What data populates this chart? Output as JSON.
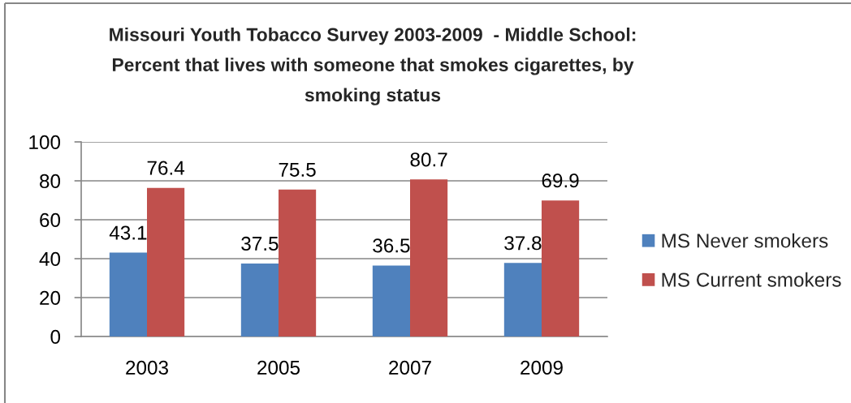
{
  "chart_data": {
    "type": "bar",
    "title": "Missouri Youth Tobacco Survey 2003-2009  - Middle School: Percent that lives with someone that smokes cigarettes, by smoking status",
    "categories": [
      "2003",
      "2005",
      "2007",
      "2009"
    ],
    "series": [
      {
        "name": "MS Never smokers",
        "color": "#4f81bd",
        "values": [
          43.1,
          37.5,
          36.5,
          37.8
        ]
      },
      {
        "name": "MS Current smokers",
        "color": "#c0504d",
        "values": [
          76.4,
          75.5,
          80.7,
          69.9
        ]
      }
    ],
    "ylim": [
      0,
      100
    ],
    "yticks": [
      0,
      20,
      40,
      60,
      80,
      100
    ],
    "grid": "y",
    "legend": "right",
    "data_labels": true
  }
}
